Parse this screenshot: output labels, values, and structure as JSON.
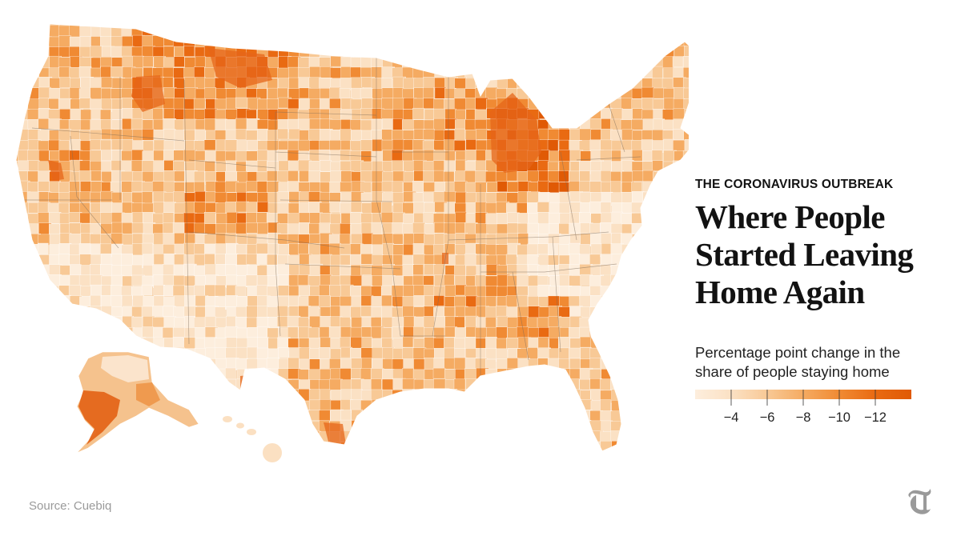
{
  "panel": {
    "kicker": "THE CORONAVIRUS OUTBREAK",
    "headline_lines": [
      "Where People",
      "Started Leaving",
      "Home Again"
    ],
    "legend_title_lines": [
      "Percentage point change in the",
      "share of people staying home"
    ]
  },
  "legend": {
    "ticks": [
      "−4",
      "−6",
      "−8",
      "−10",
      "−12"
    ],
    "tick_values": [
      -4,
      -6,
      -8,
      -10,
      -12
    ],
    "domain": [
      -2,
      -14
    ],
    "colors": [
      "#fdeedd",
      "#fbe1c4",
      "#f8c996",
      "#f5ab62",
      "#f08a33",
      "#e96a12",
      "#e05a05"
    ]
  },
  "source": "Source: Cuebiq",
  "logo": {
    "icon": "nyt-t-logo-icon",
    "color": "#9a9a9a"
  },
  "map": {
    "fill_base": "#f6cfa3",
    "border_color": "#7a6a5a",
    "regions": [
      "contiguous-us",
      "alaska",
      "hawaii"
    ]
  }
}
